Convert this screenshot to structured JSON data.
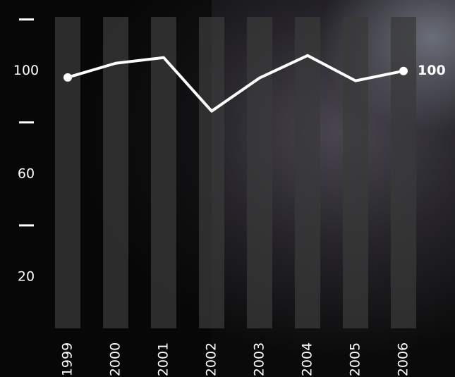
{
  "chart_data": {
    "type": "line",
    "categories": [
      "1999",
      "2000",
      "2001",
      "2002",
      "2003",
      "2004",
      "2005",
      "2006"
    ],
    "values": [
      97.5,
      103,
      105.2,
      84.4,
      97.3,
      106,
      96.2,
      100
    ],
    "color": "#ffffff",
    "ylim": [
      0,
      121
    ],
    "yticks": [
      20,
      60,
      100
    ],
    "yminorticks": [
      40,
      80,
      120
    ],
    "column_color": "#3a3a3a"
  }
}
